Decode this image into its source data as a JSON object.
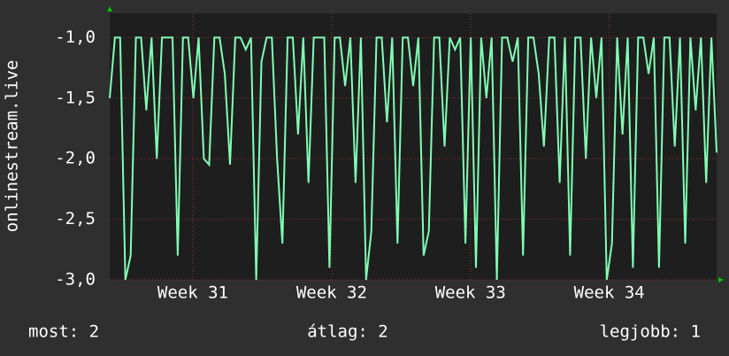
{
  "chart_data": {
    "type": "line",
    "y_label": "onlinestream.live",
    "ylim": [
      -3.0,
      -0.8
    ],
    "yticks": [
      {
        "value": -3.0,
        "label": "-3,0"
      },
      {
        "value": -2.5,
        "label": "-2,5"
      },
      {
        "value": -2.0,
        "label": "-2,0"
      },
      {
        "value": -1.5,
        "label": "-1,5"
      },
      {
        "value": -1.0,
        "label": "-1,0"
      }
    ],
    "xlim": [
      0,
      30.6
    ],
    "xticks": [
      {
        "value": 4.19,
        "label": "Week 31"
      },
      {
        "value": 11.19,
        "label": "Week 32"
      },
      {
        "value": 18.19,
        "label": "Week 33"
      },
      {
        "value": 25.19,
        "label": "Week 34"
      }
    ],
    "grid": true,
    "series": [
      {
        "color": "#80ffb4",
        "values": [
          -1.5,
          -1,
          -1,
          -3,
          -2.8,
          -1,
          -1,
          -1.6,
          -1,
          -2,
          -1,
          -1,
          -1,
          -2.8,
          -1,
          -1,
          -1.5,
          -1,
          -2,
          -2.05,
          -1,
          -1,
          -1.3,
          -2.05,
          -1,
          -1,
          -1.1,
          -1,
          -3,
          -1.2,
          -1,
          -1,
          -2,
          -2.7,
          -1,
          -1,
          -1.8,
          -1,
          -2.2,
          -1,
          -1,
          -1,
          -2.9,
          -1,
          -1,
          -1.4,
          -1,
          -2.2,
          -1,
          -3,
          -2.6,
          -1,
          -1,
          -1.7,
          -1,
          -2.7,
          -1,
          -1,
          -1.4,
          -1,
          -2.8,
          -2.6,
          -1,
          -1,
          -1.9,
          -1,
          -1.1,
          -1,
          -2.7,
          -1,
          -2.9,
          -1,
          -1.5,
          -1,
          -3,
          -1,
          -1,
          -1.2,
          -1,
          -2.8,
          -1,
          -1,
          -1.3,
          -1.9,
          -1,
          -1,
          -2.2,
          -1,
          -2.8,
          -1,
          -1,
          -2,
          -1,
          -1.5,
          -1,
          -3,
          -2.7,
          -1,
          -1.8,
          -1,
          -2.9,
          -1,
          -1,
          -1.3,
          -1,
          -2.9,
          -1,
          -1,
          -1.9,
          -1,
          -2.7,
          -1,
          -1.6,
          -1,
          -2.2,
          -1,
          -1.95
        ]
      }
    ],
    "footer": [
      "most: 2",
      "átlag: 2",
      "legjobb: 1"
    ]
  }
}
